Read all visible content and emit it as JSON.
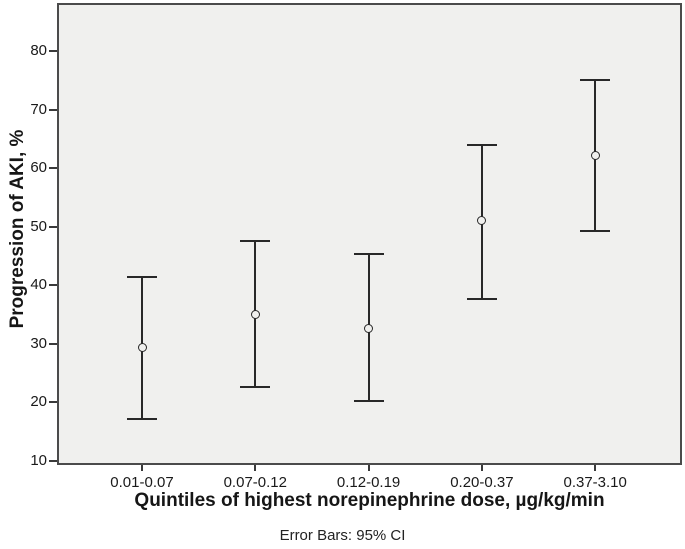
{
  "chart_data": {
    "type": "scatter",
    "subtype": "error-bar-plot",
    "title": "",
    "categories": [
      "0.01-0.07",
      "0.07-0.12",
      "0.12-0.19",
      "0.20-0.37",
      "0.37-3.10"
    ],
    "series": [
      {
        "name": "Progression of AKI, %",
        "means": [
          29.3,
          35.0,
          32.6,
          51.0,
          62.2
        ],
        "ci_low": [
          17.2,
          22.6,
          20.2,
          37.7,
          49.3
        ],
        "ci_high": [
          41.4,
          47.5,
          45.3,
          64.0,
          75.0
        ]
      }
    ],
    "xlabel": "Quintiles of highest norepinephrine dose, µg/kg/min",
    "ylabel": "Progression of AKI, %",
    "caption": "Error Bars: 95% CI",
    "yticks": [
      10,
      20,
      30,
      40,
      50,
      60,
      70,
      80
    ],
    "ylim": [
      9.3,
      88.2
    ],
    "grid": false,
    "legend": "none",
    "marker": "open-circle",
    "colors": {
      "ink": "#282828",
      "panel_bg": "#f0f0ee",
      "panel_border": "#4b4b4b",
      "text": "#1c1c1c",
      "background": "#ffffff"
    }
  }
}
